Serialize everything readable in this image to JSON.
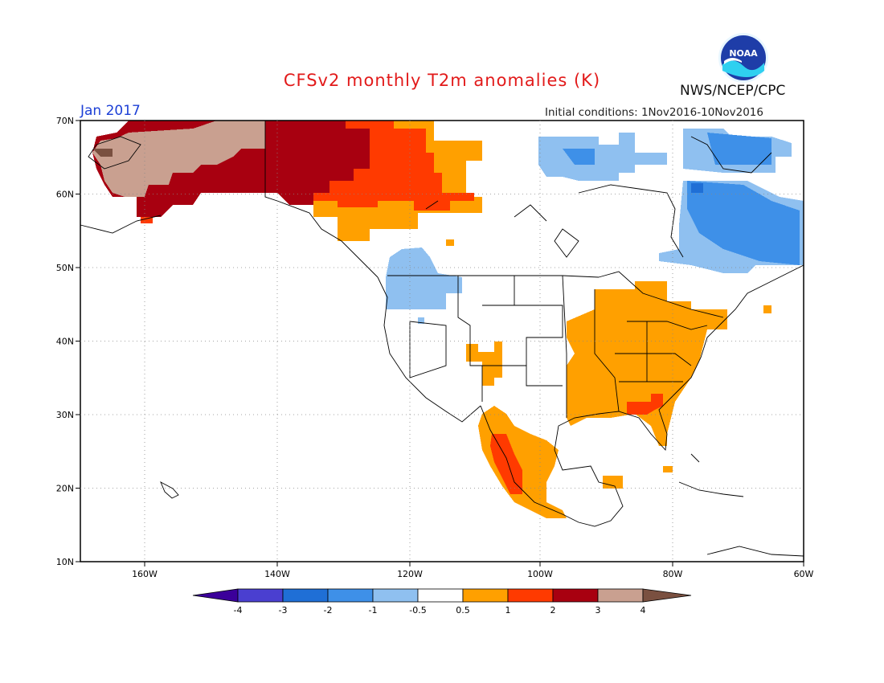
{
  "title": "CFSv2 monthly T2m anomalies (K)",
  "period": "Jan 2017",
  "initial_conditions": "Initial conditions: 1Nov2016-10Nov2016",
  "agency": "NWS/NCEP/CPC",
  "logo_text": "NOAA",
  "lat_labels": [
    "70N",
    "60N",
    "50N",
    "40N",
    "30N",
    "20N",
    "10N"
  ],
  "lon_labels": [
    "160W",
    "140W",
    "120W",
    "100W",
    "80W",
    "60W"
  ],
  "legend": {
    "labels": [
      "-4",
      "-3",
      "-2",
      "-1",
      "-0.5",
      "0.5",
      "1",
      "2",
      "3",
      "4"
    ],
    "colors": [
      "#3b009a",
      "#4a3fd0",
      "#1f6fd6",
      "#3e90e8",
      "#8fc0f0",
      "#ffffff",
      "#ffa000",
      "#ff3a00",
      "#a80010",
      "#c9a090",
      "#7a5040"
    ]
  },
  "colors": {
    "title": "#e21a1a",
    "period": "#1c3fd6",
    "warm_0_5_1": "#ffa000",
    "warm_1_2": "#ff3a00",
    "warm_2_3": "#a80010",
    "warm_3_4": "#c9a090",
    "cold_minus_0_5_1": "#8fc0f0",
    "cold_minus_1_2": "#3e90e8"
  }
}
